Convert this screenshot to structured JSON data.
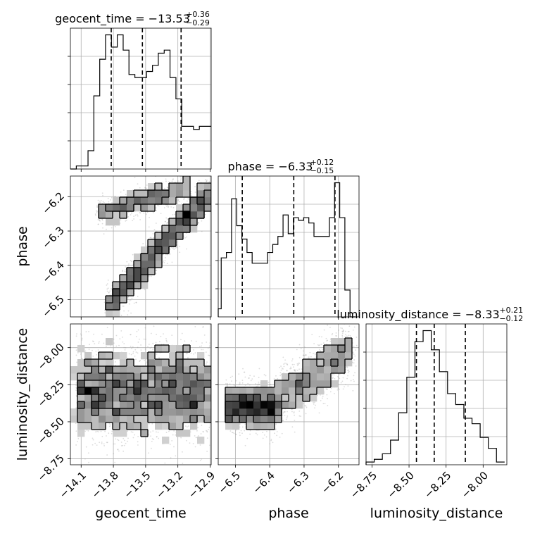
{
  "chart_data": {
    "type": "corner",
    "parameters": [
      "geocent_time",
      "phase",
      "luminosity_distance"
    ],
    "axis_labels": {
      "geocent_time": "geocent_time",
      "phase": "phase",
      "luminosity_distance": "luminosity_distance"
    },
    "titles": [
      {
        "param": "geocent_time",
        "text": "geocent_time = −13.53",
        "plus": "+0.36",
        "minus": "−0.29"
      },
      {
        "param": "phase",
        "text": "phase = −6.33",
        "plus": "+0.12",
        "minus": "−0.15"
      },
      {
        "param": "luminosity_distance",
        "text": "luminosity_distance = −8.33",
        "plus": "+0.21",
        "minus": "−0.12"
      }
    ],
    "ranges": {
      "geocent_time": [
        -14.2,
        -12.89
      ],
      "phase": [
        -6.55,
        -6.14
      ],
      "luminosity_distance": [
        -8.79,
        -7.84
      ]
    },
    "ticks": {
      "geocent_time": {
        "values": [
          -14.1,
          -13.8,
          -13.5,
          -13.2,
          -12.9
        ],
        "labels": [
          "−14.1",
          "−13.8",
          "−13.5",
          "−13.2",
          "−12.9"
        ]
      },
      "phase": {
        "values": [
          -6.5,
          -6.4,
          -6.3,
          -6.2
        ],
        "labels": [
          "−6.5",
          "−6.4",
          "−6.3",
          "−6.2"
        ]
      },
      "luminosity_distance": {
        "values": [
          -8.75,
          -8.5,
          -8.25,
          -8.0
        ],
        "labels": [
          "−8.75",
          "−8.50",
          "−8.25",
          "−8.00"
        ]
      }
    },
    "quantiles": {
      "geocent_time": [
        -13.82,
        -13.53,
        -13.17
      ],
      "phase": [
        -6.48,
        -6.33,
        -6.21
      ],
      "luminosity_distance": [
        -8.45,
        -8.33,
        -8.12
      ]
    },
    "histograms": {
      "geocent_time": {
        "edges": [
          -14.2,
          -14.145,
          -14.091,
          -14.036,
          -13.982,
          -13.927,
          -13.873,
          -13.818,
          -13.764,
          -13.709,
          -13.655,
          -13.6,
          -13.545,
          -13.491,
          -13.436,
          -13.382,
          -13.327,
          -13.273,
          -13.218,
          -13.164,
          -13.109,
          -13.055,
          -13.0,
          -12.945,
          -12.891
        ],
        "counts": [
          0,
          1,
          1,
          6,
          24,
          36,
          44,
          40,
          44,
          39,
          31,
          30,
          30,
          32,
          34,
          38,
          39,
          30,
          23,
          14,
          14,
          13,
          14,
          14
        ]
      },
      "phase": {
        "edges": [
          -6.55,
          -6.5413,
          -6.5262,
          -6.5112,
          -6.4962,
          -6.4812,
          -6.4662,
          -6.4512,
          -6.4362,
          -6.4212,
          -6.4062,
          -6.3912,
          -6.3762,
          -6.3612,
          -6.3462,
          -6.3312,
          -6.3162,
          -6.3012,
          -6.2862,
          -6.2712,
          -6.2562,
          -6.2412,
          -6.2262,
          -6.2112,
          -6.1962,
          -6.1812,
          -6.1662,
          -6.1512
        ],
        "counts": [
          3,
          22,
          24,
          44,
          34,
          29,
          24,
          20,
          20,
          20,
          24,
          27,
          30,
          38,
          31,
          37,
          36,
          37,
          35,
          30,
          30,
          30,
          37,
          50,
          37,
          10,
          0
        ]
      },
      "luminosity_distance": {
        "edges": [
          -8.79,
          -8.735,
          -8.68,
          -8.625,
          -8.57,
          -8.515,
          -8.46,
          -8.405,
          -8.35,
          -8.295,
          -8.24,
          -8.185,
          -8.13,
          -8.075,
          -8.02,
          -7.965,
          -7.91,
          -7.855
        ],
        "counts": [
          1,
          2,
          4,
          9,
          19,
          32,
          45,
          49,
          42,
          34,
          26,
          22,
          17,
          15,
          10,
          6,
          1
        ]
      }
    },
    "grid": true
  }
}
